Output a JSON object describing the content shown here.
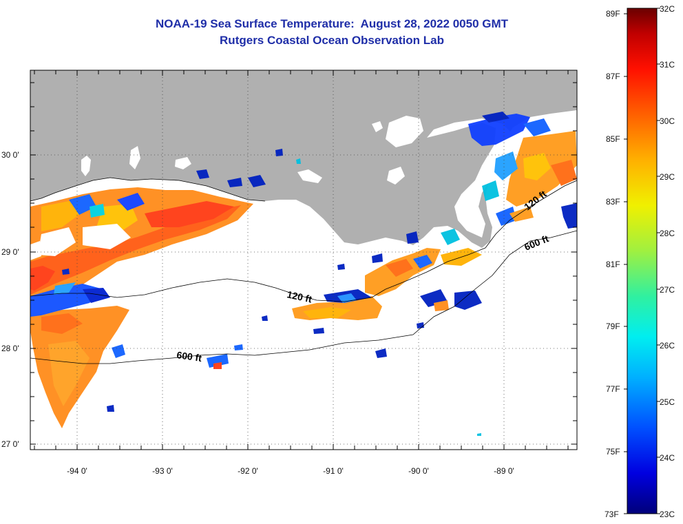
{
  "title": {
    "line1": "NOAA-19 Sea Surface Temperature:  August 28, 2022 0050 GMT",
    "line2": "Rutgers Coastal Ocean Observation Lab"
  },
  "colors": {
    "title": "#1f2ea8",
    "land": "#b0b0b0",
    "no_data": "#ffffff"
  },
  "map": {
    "lon_ticks": [
      "-94 0'",
      "-93 0'",
      "-92 0'",
      "-91 0'",
      "-90 0'",
      "-89 0'"
    ],
    "lat_ticks": [
      "30 0'",
      "29 0'",
      "28 0'",
      "27 0'"
    ],
    "contours": [
      {
        "label": "120 ft"
      },
      {
        "label": "600 ft"
      },
      {
        "label": "120 ft"
      },
      {
        "label": "600 ft"
      }
    ]
  },
  "colorbar": {
    "fahrenheit": [
      "89F",
      "87F",
      "85F",
      "83F",
      "81F",
      "79F",
      "77F",
      "75F",
      "73F"
    ],
    "celsius": [
      "32C",
      "31C",
      "30C",
      "29C",
      "28C",
      "27C",
      "26C",
      "25C",
      "24C",
      "23C"
    ],
    "scale": [
      "#00007a",
      "#0000e0",
      "#0050ff",
      "#00b0ff",
      "#00eef0",
      "#30f0a0",
      "#a0f040",
      "#f0f000",
      "#ffb000",
      "#ff6000",
      "#ff1000",
      "#c00000",
      "#6a0000"
    ]
  }
}
